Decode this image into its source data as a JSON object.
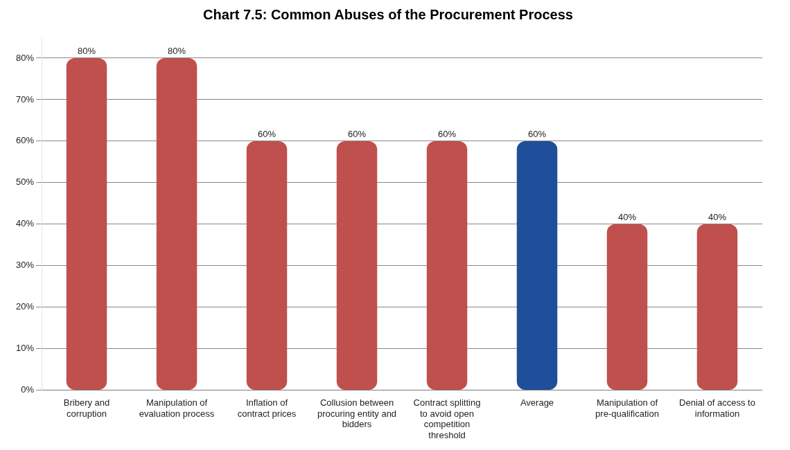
{
  "chart_data": {
    "type": "bar",
    "title": "Chart 7.5: Common Abuses of the Procurement Process",
    "categories": [
      "Bribery and corruption",
      "Manipulation of evaluation process",
      "Inflation of contract prices",
      "Collusion between procuring entity and bidders",
      "Contract splitting to avoid open competition threshold",
      "Average",
      "Manipulation of pre-qualification",
      "Denial of access to information"
    ],
    "values": [
      80,
      80,
      60,
      60,
      60,
      60,
      40,
      40
    ],
    "colors": [
      "#c0504d",
      "#c0504d",
      "#c0504d",
      "#c0504d",
      "#c0504d",
      "#1f4e9a",
      "#c0504d",
      "#c0504d"
    ],
    "value_labels": [
      "80%",
      "80%",
      "60%",
      "60%",
      "60%",
      "60%",
      "40%",
      "40%"
    ],
    "ylim": [
      0,
      85
    ],
    "yticks": [
      {
        "value": 0,
        "label": "0%"
      },
      {
        "value": 10,
        "label": "10%"
      },
      {
        "value": 20,
        "label": "20%"
      },
      {
        "value": 30,
        "label": "30%"
      },
      {
        "value": 40,
        "label": "40%"
      },
      {
        "value": 50,
        "label": "50%"
      },
      {
        "value": 60,
        "label": "60%"
      },
      {
        "value": 70,
        "label": "70%"
      },
      {
        "value": 80,
        "label": "80%"
      }
    ],
    "grid": "y",
    "legend": false
  }
}
